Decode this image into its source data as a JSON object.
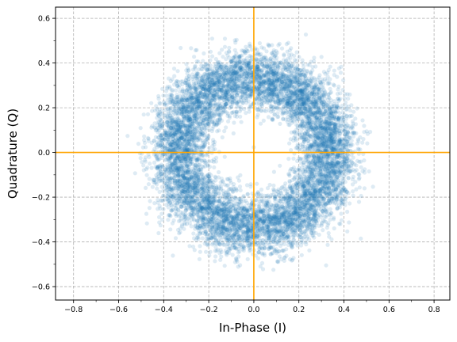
{
  "chart_data": {
    "type": "scatter",
    "title": "",
    "xlabel": "In-Phase (I)",
    "ylabel": "Quadrature (Q)",
    "xlim": [
      -0.88,
      0.87
    ],
    "ylim": [
      -0.66,
      0.65
    ],
    "x_ticks": [
      -0.8,
      -0.6,
      -0.4,
      -0.2,
      0.0,
      0.2,
      0.4,
      0.6,
      0.8
    ],
    "x_tick_labels": [
      "−0.8",
      "−0.6",
      "−0.4",
      "−0.2",
      "0.0",
      "0.2",
      "0.4",
      "0.6",
      "0.8"
    ],
    "y_ticks": [
      -0.6,
      -0.4,
      -0.2,
      0.0,
      0.2,
      0.4,
      0.6
    ],
    "y_tick_labels": [
      "−0.6",
      "−0.4",
      "−0.2",
      "0.0",
      "0.2",
      "0.4",
      "0.6"
    ],
    "grid": true,
    "grid_style": "dashed",
    "series": [
      {
        "description": "ring-shaped cloud of samples",
        "color": "#1f77b4",
        "alpha": 0.15,
        "center": [
          0.0,
          0.0
        ],
        "ring_radius_mean": 0.34,
        "ring_radius_std": 0.065,
        "approx_points": 9000
      }
    ],
    "reference_lines": [
      {
        "orientation": "vertical",
        "value": 0.0,
        "color": "#ffa500"
      },
      {
        "orientation": "horizontal",
        "value": 0.0,
        "color": "#ffa500"
      }
    ]
  }
}
